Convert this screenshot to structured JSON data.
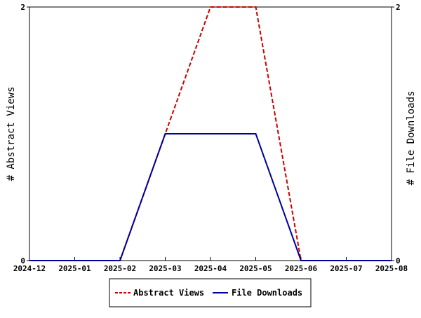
{
  "chart_data": {
    "type": "line",
    "x": [
      "2024-12",
      "2025-01",
      "2025-02",
      "2025-03",
      "2025-04",
      "2025-05",
      "2025-06",
      "2025-07",
      "2025-08"
    ],
    "series": [
      {
        "name": "Abstract Views",
        "values": [
          0,
          0,
          0,
          1,
          2,
          2,
          0,
          0,
          0
        ],
        "color": "#cc0000",
        "style": "dashed",
        "axis": "left"
      },
      {
        "name": "File Downloads",
        "values": [
          0,
          0,
          0,
          1,
          1,
          1,
          0,
          0,
          0
        ],
        "color": "#000099",
        "style": "solid",
        "axis": "right"
      }
    ],
    "ylabel": "# Abstract Views",
    "ylabel_right": "# File Downloads",
    "ylim": [
      0,
      2
    ],
    "ylim_right": [
      0,
      2
    ],
    "y_ticks": [
      "0",
      "2"
    ],
    "y_ticks_right": [
      "0",
      "2"
    ],
    "grid": false,
    "legend_position": "bottom-center"
  }
}
